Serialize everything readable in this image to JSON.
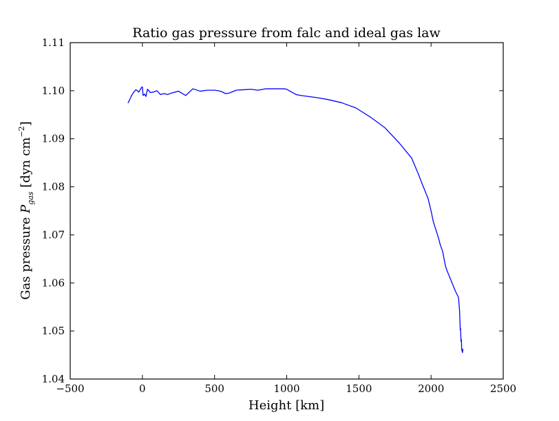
{
  "chart_data": {
    "type": "line",
    "title": "Ratio gas pressure from falc and ideal gas law",
    "xlabel": "Height [km]",
    "ylabel_main": "Gas pressure ",
    "ylabel_sym": "P",
    "ylabel_sub": "gas",
    "ylabel_unit_pre": " [dyn cm",
    "ylabel_sup": "−2",
    "ylabel_unit_post": "]",
    "xlim": [
      -500,
      2500
    ],
    "ylim": [
      1.04,
      1.11
    ],
    "xticks": [
      -500,
      0,
      500,
      1000,
      1500,
      2000,
      2500
    ],
    "xtick_labels": [
      "−500",
      "0",
      "500",
      "1000",
      "1500",
      "2000",
      "2500"
    ],
    "yticks": [
      1.04,
      1.05,
      1.06,
      1.07,
      1.08,
      1.09,
      1.1,
      1.11
    ],
    "ytick_labels": [
      "1.04",
      "1.05",
      "1.06",
      "1.07",
      "1.08",
      "1.09",
      "1.10",
      "1.11"
    ],
    "grid": false,
    "series": [
      {
        "color": "#0000ff",
        "x": [
          -100,
          -90,
          -75,
          -60,
          -45,
          -35,
          -25,
          -10,
          0,
          5,
          15,
          25,
          35,
          45,
          55,
          75,
          100,
          125,
          150,
          175,
          200,
          250,
          300,
          350,
          400,
          450,
          500,
          525,
          550,
          575,
          600,
          650,
          700,
          750,
          800,
          855,
          900,
          950,
          980,
          1000,
          1065,
          1100,
          1150,
          1200,
          1280,
          1380,
          1480,
          1580,
          1680,
          1780,
          1865,
          1910,
          1940,
          1980,
          2000,
          2015,
          2030,
          2050,
          2065,
          2080,
          2090,
          2100,
          2110,
          2140,
          2170,
          2190,
          2198,
          2202,
          2204,
          2206,
          2208,
          2210,
          2212,
          2215,
          2218,
          2220
        ],
        "y": [
          1.0974,
          1.098,
          1.099,
          1.0997,
          1.1002,
          1.1,
          1.0997,
          1.1005,
          1.1008,
          1.099,
          1.0993,
          1.0988,
          1.1003,
          1.1,
          1.0996,
          1.0997,
          1.1,
          1.0992,
          1.0994,
          1.0992,
          1.0995,
          1.0999,
          1.099,
          1.1004,
          1.0999,
          1.1001,
          1.1001,
          1.1,
          1.0998,
          1.0994,
          1.0995,
          1.1001,
          1.1002,
          1.1003,
          1.1001,
          1.1004,
          1.1004,
          1.1004,
          1.1004,
          1.1003,
          1.0992,
          1.099,
          1.0988,
          1.0986,
          1.0982,
          1.0975,
          1.0964,
          1.0945,
          1.0923,
          1.0891,
          1.086,
          1.0828,
          1.0805,
          1.0775,
          1.075,
          1.0728,
          1.0714,
          1.0695,
          1.0678,
          1.0666,
          1.065,
          1.0635,
          1.0626,
          1.0604,
          1.0582,
          1.057,
          1.054,
          1.0502,
          1.0505,
          1.049,
          1.0478,
          1.0482,
          1.0463,
          1.0458,
          1.0455,
          1.0463
        ]
      }
    ]
  }
}
